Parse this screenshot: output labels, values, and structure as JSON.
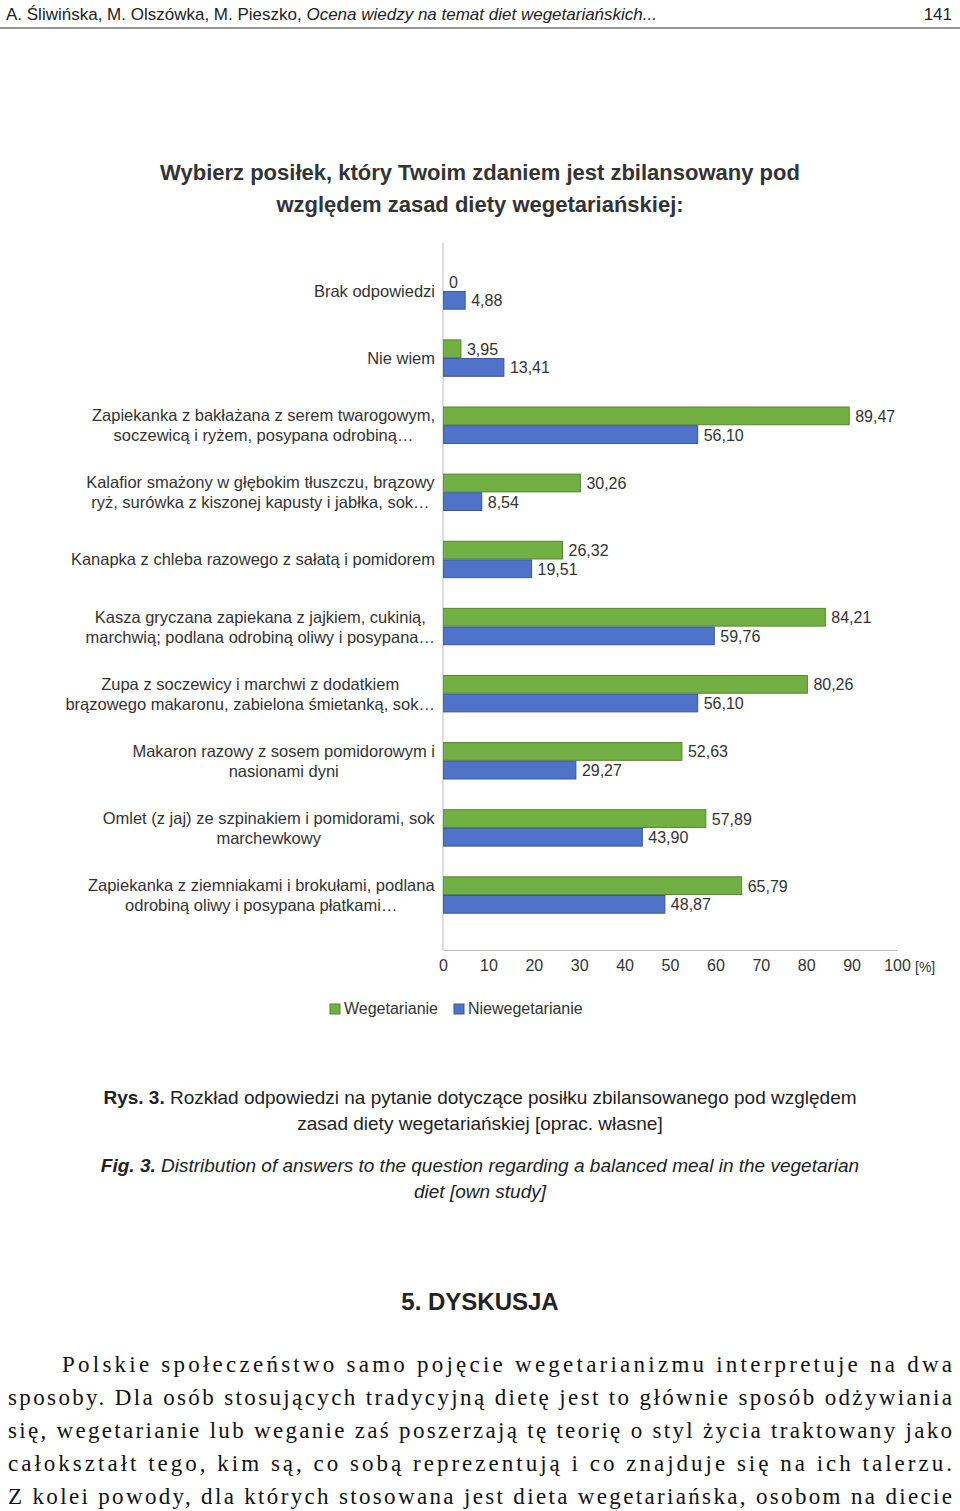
{
  "header": {
    "authors": "A. Śliwińska, M. Olszówka, M. Pieszko,",
    "title": "Ocena wiedzy na temat diet wegetariańskich...",
    "page": "141"
  },
  "chart_data": {
    "type": "bar",
    "orientation": "horizontal",
    "title": "Wybierz posiłek, który Twoim zdaniem jest zbilansowany pod\nwzględem zasad diety wegetariańskiej:",
    "categories": [
      "Brak odpowiedzi",
      "Nie wiem",
      "Zapiekanka z bakłażana z serem twarogowym,\nsoczewicą i ryżem, posypana odrobiną…",
      "Kalafior smażony w głębokim tłuszczu, brązowy\nryż, surówka z kiszonej kapusty i jabłka, sok…",
      "Kanapka z chleba razowego z sałatą i pomidorem",
      "Kasza gryczana zapiekana z jajkiem, cukinią,\nmarchwią; podlana odrobiną oliwy i posypana…",
      "Zupa z soczewicy i marchwi z dodatkiem\nbrązowego makaronu, zabielona śmietanką, sok…",
      "Makaron razowy z sosem pomidorowym i\nnasionami dyni",
      "Omlet (z jaj) ze szpinakiem i pomidorami, sok\nmarchewkowy",
      "Zapiekanka z ziemniakami i brokułami, podlana\nodrobiną oliwy i posypana płatkami…"
    ],
    "series": [
      {
        "name": "Wegetarianie",
        "color": "#72b043",
        "values": [
          0,
          3.95,
          89.47,
          30.26,
          26.32,
          84.21,
          80.26,
          52.63,
          57.89,
          65.79
        ],
        "value_labels": [
          "0",
          "3,95",
          "89,47",
          "30,26",
          "26,32",
          "84,21",
          "80,26",
          "52,63",
          "57,89",
          "65,79"
        ]
      },
      {
        "name": "Niewegetarianie",
        "color": "#4f73c9",
        "values": [
          4.88,
          13.41,
          56.1,
          8.54,
          19.51,
          59.76,
          56.1,
          29.27,
          43.9,
          48.87
        ],
        "value_labels": [
          "4,88",
          "13,41",
          "56,10",
          "8,54",
          "19,51",
          "59,76",
          "56,10",
          "29,27",
          "43,90",
          "48,87"
        ]
      }
    ],
    "xlim": [
      0,
      100
    ],
    "xticks": [
      0,
      10,
      20,
      30,
      40,
      50,
      60,
      70,
      80,
      90,
      100
    ],
    "x_label": "[%]",
    "data_labels": true,
    "legend": "bottom",
    "grid": false
  },
  "caption_pl": {
    "label": "Rys. 3.",
    "lines": [
      "Rozkład odpowiedzi na pytanie dotyczące posiłku zbilansowanego pod względem",
      "zasad diety wegetariańskiej [oprac. własne]"
    ]
  },
  "caption_en": {
    "label": "Fig. 3.",
    "lines": [
      "Distribution of answers to the question regarding a balanced meal in the vegetarian",
      "diet [own study]"
    ]
  },
  "section": "5. DYSKUSJA",
  "paragraph": [
    "Polskie społeczeństwo samo pojęcie wegetarianizmu interpretuje na dwa",
    "sposoby. Dla osób stosujących tradycyjną dietę jest to głównie sposób odżywiania",
    "się, wegetarianie lub weganie zaś poszerzają tę teorię o styl życia traktowany jako",
    "całokształt tego, kim są, co sobą reprezentują i co znajduje się na ich talerzu.",
    "Z kolei powody, dla których stosowana jest dieta wegetariańska, osobom na diecie"
  ]
}
